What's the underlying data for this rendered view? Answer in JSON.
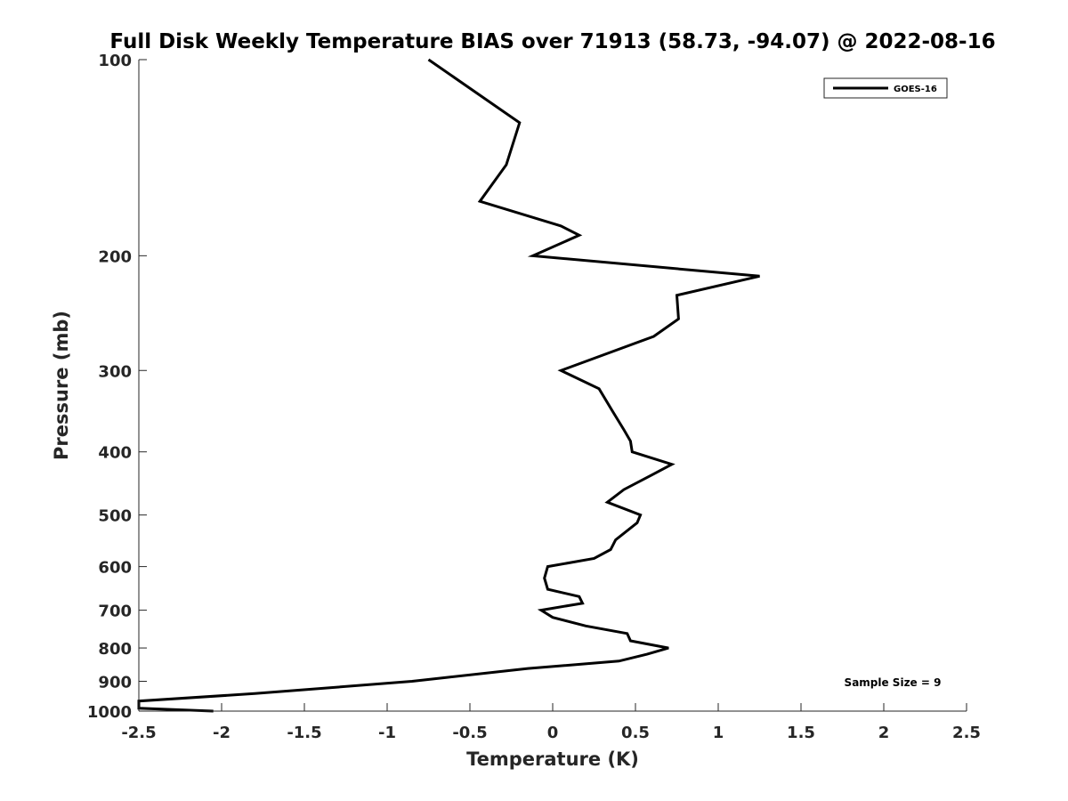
{
  "chart_data": {
    "type": "line",
    "title": "Full Disk Weekly Temperature BIAS over 71913 (58.73, -94.07) @ 2022-08-16",
    "xlabel": "Temperature (K)",
    "ylabel": "Pressure (mb)",
    "xlim": [
      -2.5,
      2.5
    ],
    "ylim": [
      100,
      1000
    ],
    "y_scale": "log",
    "y_reversed": true,
    "x_ticks": [
      -2.5,
      -2,
      -1.5,
      -1,
      -0.5,
      0,
      0.5,
      1,
      1.5,
      2,
      2.5
    ],
    "x_tick_labels": [
      "-2.5",
      "-2",
      "-1.5",
      "-1",
      "-0.5",
      "0",
      "0.5",
      "1",
      "1.5",
      "2",
      "2.5"
    ],
    "y_ticks": [
      100,
      200,
      300,
      400,
      500,
      600,
      700,
      800,
      900,
      1000
    ],
    "y_tick_labels": [
      "100",
      "200",
      "300",
      "400",
      "500",
      "600",
      "700",
      "800",
      "900",
      "1000"
    ],
    "grid": false,
    "legend_position": "top-right",
    "annotation": "Sample Size = 9",
    "series": [
      {
        "name": "GOES-16",
        "color": "#000000",
        "points": [
          {
            "x": -0.75,
            "p": 100
          },
          {
            "x": -0.2,
            "p": 125
          },
          {
            "x": -0.28,
            "p": 145
          },
          {
            "x": -0.44,
            "p": 165
          },
          {
            "x": 0.05,
            "p": 180
          },
          {
            "x": 0.16,
            "p": 186
          },
          {
            "x": -0.12,
            "p": 200
          },
          {
            "x": 1.25,
            "p": 215
          },
          {
            "x": 0.75,
            "p": 230
          },
          {
            "x": 0.76,
            "p": 250
          },
          {
            "x": 0.61,
            "p": 266
          },
          {
            "x": 0.05,
            "p": 300
          },
          {
            "x": 0.28,
            "p": 320
          },
          {
            "x": 0.36,
            "p": 346
          },
          {
            "x": 0.43,
            "p": 370
          },
          {
            "x": 0.47,
            "p": 385
          },
          {
            "x": 0.48,
            "p": 400
          },
          {
            "x": 0.72,
            "p": 418
          },
          {
            "x": 0.6,
            "p": 434
          },
          {
            "x": 0.43,
            "p": 457
          },
          {
            "x": 0.33,
            "p": 478
          },
          {
            "x": 0.53,
            "p": 500
          },
          {
            "x": 0.51,
            "p": 514
          },
          {
            "x": 0.38,
            "p": 546
          },
          {
            "x": 0.35,
            "p": 565
          },
          {
            "x": 0.25,
            "p": 583
          },
          {
            "x": -0.03,
            "p": 600
          },
          {
            "x": -0.05,
            "p": 625
          },
          {
            "x": -0.03,
            "p": 650
          },
          {
            "x": 0.16,
            "p": 667
          },
          {
            "x": 0.18,
            "p": 683
          },
          {
            "x": -0.07,
            "p": 700
          },
          {
            "x": 0.0,
            "p": 718
          },
          {
            "x": 0.2,
            "p": 740
          },
          {
            "x": 0.45,
            "p": 760
          },
          {
            "x": 0.47,
            "p": 780
          },
          {
            "x": 0.7,
            "p": 800
          },
          {
            "x": 0.57,
            "p": 818
          },
          {
            "x": 0.4,
            "p": 838
          },
          {
            "x": -0.15,
            "p": 860
          },
          {
            "x": -0.85,
            "p": 900
          },
          {
            "x": -1.8,
            "p": 940
          },
          {
            "x": -2.5,
            "p": 965
          },
          {
            "x": -2.5,
            "p": 990
          },
          {
            "x": -2.05,
            "p": 1000
          }
        ]
      }
    ]
  }
}
